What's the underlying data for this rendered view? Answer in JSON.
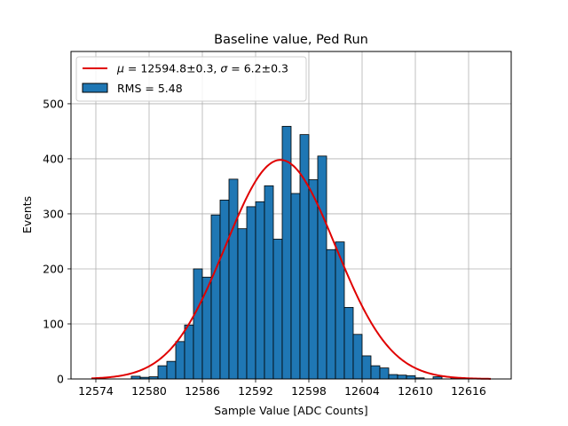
{
  "chart_data": {
    "type": "bar",
    "title": "Baseline value, Ped Run",
    "xlabel": "Sample Value [ADC Counts]",
    "ylabel": "Events",
    "xlim": [
      12571.2,
      12620.8
    ],
    "ylim": [
      0,
      595
    ],
    "xticks": [
      12574,
      12580,
      12586,
      12592,
      12598,
      12604,
      12610,
      12616
    ],
    "yticks": [
      0,
      100,
      200,
      300,
      400,
      500
    ],
    "grid": true,
    "legend_position": "top-left",
    "colors": {
      "bars": "#1f77b4",
      "bar_edge": "#000000",
      "fit": "#e00000",
      "grid": "#b0b0b0"
    },
    "histogram": {
      "name": "RMS = 5.48",
      "bin_width": 1,
      "bins": [
        [
          12578.5,
          5
        ],
        [
          12579.5,
          3
        ],
        [
          12580.5,
          4
        ],
        [
          12581.5,
          24
        ],
        [
          12582.5,
          32
        ],
        [
          12583.5,
          68
        ],
        [
          12584.5,
          98
        ],
        [
          12585.5,
          200
        ],
        [
          12586.5,
          185
        ],
        [
          12587.5,
          298
        ],
        [
          12588.5,
          325
        ],
        [
          12589.5,
          363
        ],
        [
          12590.5,
          273
        ],
        [
          12591.5,
          313
        ],
        [
          12592.5,
          322
        ],
        [
          12593.5,
          351
        ],
        [
          12594.5,
          254
        ],
        [
          12595.5,
          459
        ],
        [
          12596.5,
          337
        ],
        [
          12597.5,
          444
        ],
        [
          12598.5,
          362
        ],
        [
          12599.5,
          405
        ],
        [
          12600.5,
          235
        ],
        [
          12601.5,
          249
        ],
        [
          12602.5,
          130
        ],
        [
          12603.5,
          81
        ],
        [
          12604.5,
          42
        ],
        [
          12605.5,
          24
        ],
        [
          12606.5,
          20
        ],
        [
          12607.5,
          8
        ],
        [
          12608.5,
          7
        ],
        [
          12609.5,
          6
        ],
        [
          12610.5,
          2
        ],
        [
          12611.5,
          0
        ],
        [
          12612.5,
          4
        ],
        [
          12613.5,
          0
        ],
        [
          12614.5,
          2
        ]
      ]
    },
    "fit": {
      "name_tex": "μ = 12594.8±0.3, σ = 6.2±0.3",
      "mu_label": "μ",
      "mu_text": " = 12594.8±0.3, ",
      "sigma_label": "σ",
      "sigma_text": " = 6.2±0.3",
      "mu": 12594.8,
      "sigma": 6.2,
      "amplitude": 398,
      "x_range": [
        12573.5,
        12618.5
      ]
    }
  }
}
